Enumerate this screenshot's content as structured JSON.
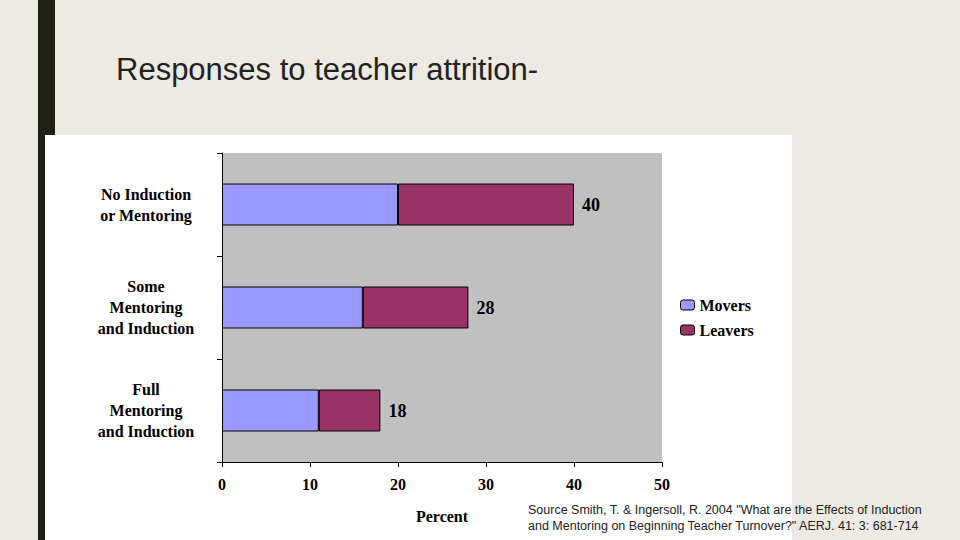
{
  "title": "Responses to teacher attrition-",
  "source": [
    "Source Smith, T. & Ingersoll, R. 2004 \"What are the Effects of Induction",
    "and Mentoring on Beginning Teacher Turnover?\" AERJ. 41: 3: 681-714"
  ],
  "chart_data": {
    "type": "bar",
    "orientation": "horizontal",
    "stacked": true,
    "categories": [
      "No Induction\nor Mentoring",
      "Some\nMentoring\nand Induction",
      "Full\nMentoring\nand Induction"
    ],
    "series": [
      {
        "name": "Movers",
        "color": "#9999ff",
        "values": [
          20,
          16,
          11
        ]
      },
      {
        "name": "Leavers",
        "color": "#993366",
        "values": [
          20,
          12,
          7
        ]
      }
    ],
    "total_labels": [
      40,
      28,
      18
    ],
    "xlabel": "Percent",
    "xlim": [
      0,
      50
    ],
    "xticks": [
      0,
      10,
      20,
      30,
      40,
      50
    ],
    "grid": false,
    "legend": "right"
  }
}
